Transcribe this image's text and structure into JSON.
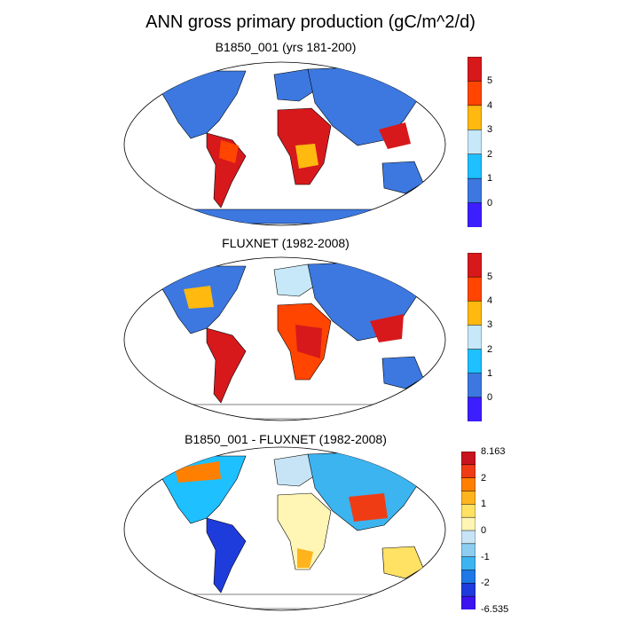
{
  "title": "ANN gross primary production (gC/m^2/d)",
  "panels": [
    {
      "title": "B1850_001 (yrs 181-200)",
      "colorbar": {
        "labels": [
          "5",
          "4",
          "3",
          "2",
          "1",
          "0"
        ],
        "colors": [
          "#d7191c",
          "#ff4500",
          "#ffb90f",
          "#c6e8f8",
          "#1ec0ff",
          "#3c78e0",
          "#3c1eff"
        ]
      }
    },
    {
      "title": "FLUXNET (1982-2008)",
      "colorbar": {
        "labels": [
          "5",
          "4",
          "3",
          "2",
          "1",
          "0"
        ],
        "colors": [
          "#d7191c",
          "#ff4500",
          "#ffb90f",
          "#c6e8f8",
          "#1ec0ff",
          "#3c78e0",
          "#3c1eff"
        ]
      }
    },
    {
      "title": "B1850_001 - FLUXNET (1982-2008)",
      "colorbar": {
        "labels": [
          "8.163",
          "2",
          "1",
          "0",
          "-1",
          "-2",
          "-6.535"
        ],
        "colors": [
          "#c8141e",
          "#f03c14",
          "#ff7f00",
          "#ffb41e",
          "#ffe164",
          "#fff5b4",
          "#c6e4f5",
          "#8ccdf0",
          "#3cb4f0",
          "#1e78e6",
          "#1e3cdc",
          "#3c14f0"
        ]
      }
    }
  ]
}
